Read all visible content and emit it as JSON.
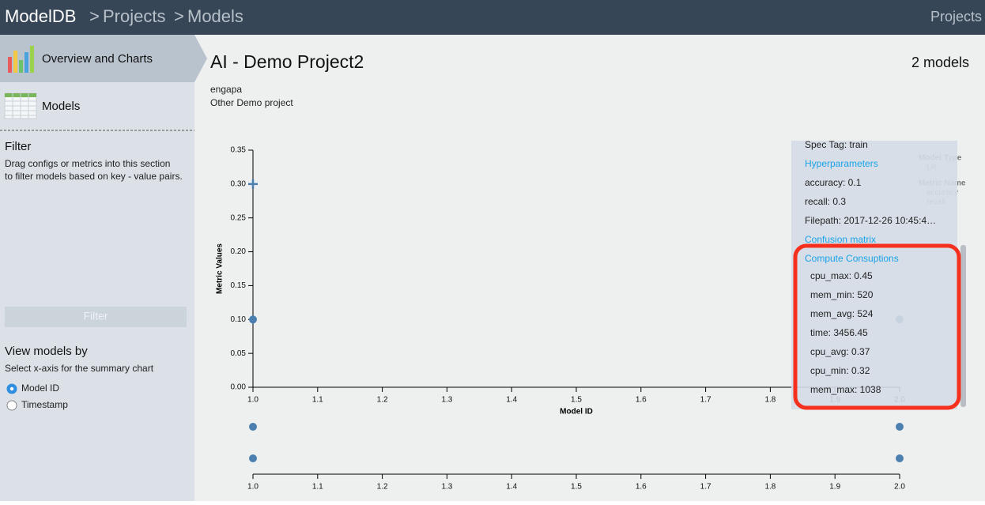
{
  "header": {
    "breadcrumb": [
      "ModelDB",
      "Projects",
      "Models"
    ],
    "separator": ">",
    "right_link": "Projects"
  },
  "sidebar": {
    "nav": [
      "Overview and Charts",
      "Models"
    ],
    "filter": {
      "title": "Filter",
      "description": [
        "Drag configs or metrics into this section",
        "to filter models based on key - value pairs."
      ],
      "button": "Filter"
    },
    "view_by": {
      "title": "View models by",
      "hint": "Select x-axis for the summary chart",
      "options": [
        "Model ID",
        "Timestamp"
      ],
      "selected": 0
    }
  },
  "project": {
    "title": "AI - Demo Project2",
    "model_count": "2 models",
    "author": "engapa",
    "description": "Other Demo project"
  },
  "charts": [
    {
      "type": "scatter",
      "y_label": "Metric Values",
      "x_label": "Model ID",
      "xlim": [
        1,
        2
      ],
      "ylim": [
        0,
        0.35
      ],
      "xticks": [
        {
          "value": 1,
          "label": "1.0"
        },
        1.1,
        1.2,
        1.3,
        1.4,
        1.5,
        1.6,
        1.7,
        1.8,
        1.9,
        {
          "value": 2,
          "label": "2.0"
        }
      ],
      "yticks": [
        {
          "value": 0,
          "label": "0.00"
        },
        0.05,
        {
          "value": 0.1,
          "label": "0.10"
        },
        0.15,
        {
          "value": 0.2,
          "label": "0.20"
        },
        0.25,
        {
          "value": 0.3,
          "label": "0.30"
        },
        0.35
      ],
      "series": [
        {
          "marker": "cross",
          "color": "#4a7fb0",
          "x": [
            1
          ],
          "values": [
            0.3
          ]
        },
        {
          "marker": "circle",
          "color": "#4a7fb0",
          "x": [
            1,
            2
          ],
          "values": [
            0.1,
            0.1
          ]
        }
      ],
      "legend_groups": [
        {
          "title": "Model Type",
          "items": [
            "LR"
          ]
        },
        {
          "title": "Metric Name",
          "items": [
            "accuracy",
            "recall"
          ]
        }
      ]
    },
    {
      "type": "strip",
      "xlim": [
        1,
        2
      ],
      "xticks": [
        {
          "value": 1,
          "label": "1.0"
        },
        1.1,
        1.2,
        1.3,
        1.4,
        1.5,
        1.6,
        1.7,
        1.8,
        1.9,
        {
          "value": 2,
          "label": "2.0"
        }
      ],
      "series": [
        {
          "color": "#4a7fb0",
          "x": [
            1,
            2
          ]
        },
        {
          "color": "#4a7fb0",
          "x": [
            1,
            2
          ]
        }
      ]
    }
  ],
  "details": {
    "spec_tag": "Spec Tag: train",
    "hyperparameters_title": "Hyperparameters",
    "hyperparameters": [
      "accuracy: 0.1",
      "recall: 0.3"
    ],
    "filepath": "Filepath: 2017-12-26 10:45:4…",
    "confusion_link": "Confusion matrix",
    "compute_title": "Compute Consuptions",
    "compute": [
      "cpu_max: 0.45",
      "mem_min: 520",
      "mem_avg: 524",
      "time: 3456.45",
      "cpu_avg: 0.37",
      "cpu_min: 0.32",
      "mem_max: 1038"
    ]
  }
}
